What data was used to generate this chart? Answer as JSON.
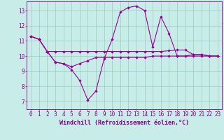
{
  "xlabel": "Windchill (Refroidissement éolien,°C)",
  "bg_color": "#c8ece8",
  "line_color": "#990099",
  "grid_color": "#99ccbb",
  "axis_color": "#880088",
  "text_color": "#880088",
  "xlim": [
    -0.5,
    23.5
  ],
  "ylim": [
    6.5,
    13.6
  ],
  "yticks": [
    7,
    8,
    9,
    10,
    11,
    12,
    13
  ],
  "xticks": [
    0,
    1,
    2,
    3,
    4,
    5,
    6,
    7,
    8,
    9,
    10,
    11,
    12,
    13,
    14,
    15,
    16,
    17,
    18,
    19,
    20,
    21,
    22,
    23
  ],
  "series": [
    [
      11.3,
      11.1,
      10.3,
      9.6,
      9.5,
      9.1,
      8.4,
      7.1,
      7.7,
      9.8,
      11.1,
      12.9,
      13.2,
      13.3,
      13.0,
      10.6,
      12.6,
      11.5,
      10.0,
      10.0,
      10.1,
      10.1,
      10.0,
      10.0
    ],
    [
      11.3,
      11.1,
      10.3,
      10.3,
      10.3,
      10.3,
      10.3,
      10.3,
      10.3,
      10.3,
      10.3,
      10.3,
      10.3,
      10.3,
      10.3,
      10.3,
      10.3,
      10.35,
      10.4,
      10.4,
      10.1,
      10.1,
      10.0,
      10.0
    ],
    [
      11.3,
      11.1,
      10.3,
      9.6,
      9.5,
      9.3,
      9.5,
      9.7,
      9.9,
      9.9,
      9.9,
      9.9,
      9.9,
      9.9,
      9.9,
      10.0,
      10.0,
      10.0,
      10.0,
      10.0,
      10.0,
      10.0,
      10.0,
      10.0
    ]
  ],
  "tick_fontsize": 5.5,
  "xlabel_fontsize": 6.0,
  "marker_size": 2.2,
  "line_width": 0.8
}
